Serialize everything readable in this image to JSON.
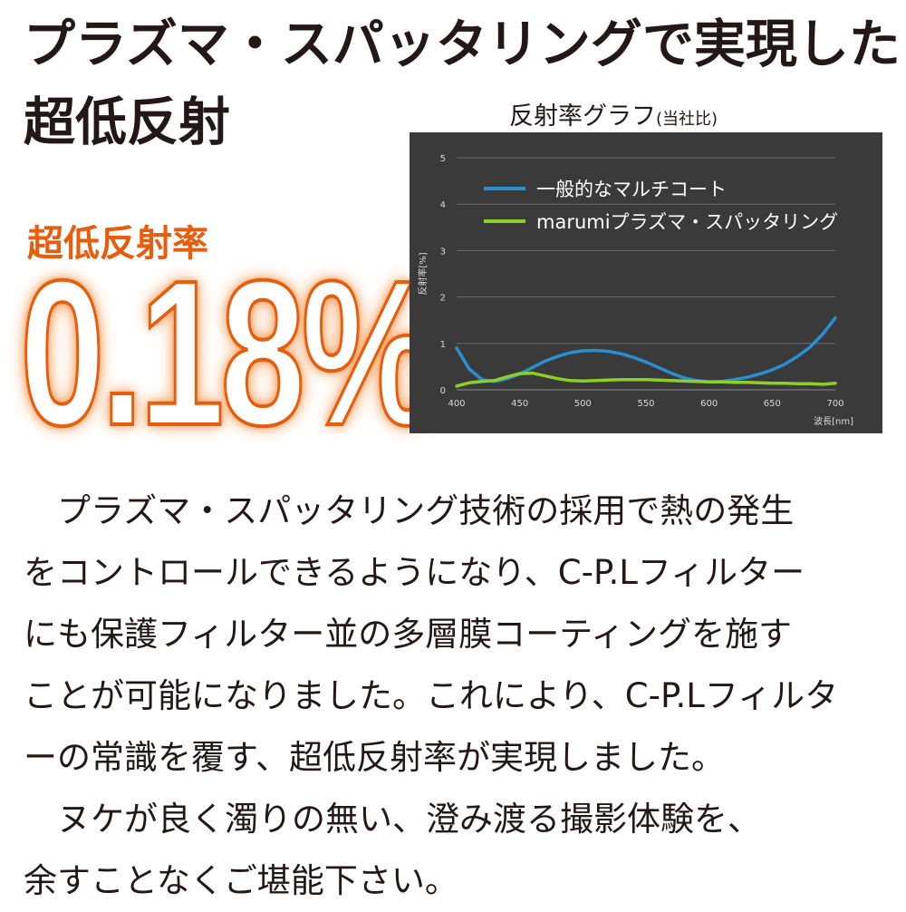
{
  "headline": {
    "line1": "プラズマ・スパッタリングで実現した",
    "line2": "超低反射"
  },
  "rate": {
    "label": "超低反射率",
    "value": "0.18%"
  },
  "chart_title": {
    "main": "反射率グラフ",
    "sub": "(当社比)"
  },
  "colors": {
    "accent": "#e85d0c",
    "chart_bg": "#3a3a3a",
    "series_blue": "#2a8fd0",
    "series_green": "#8ccf2a",
    "text": "#231815"
  },
  "chart_data": {
    "type": "line",
    "title": "反射率グラフ(当社比)",
    "xlabel": "波長[nm]",
    "ylabel": "反射率[%]",
    "xlim": [
      400,
      700
    ],
    "ylim": [
      0,
      5
    ],
    "x_ticks": [
      "400",
      "450",
      "500",
      "550",
      "600",
      "650",
      "700"
    ],
    "y_ticks": [
      "0",
      "1",
      "2",
      "3",
      "4",
      "5"
    ],
    "grid": true,
    "legend": "top-left",
    "x": [
      400,
      410,
      420,
      430,
      440,
      450,
      460,
      470,
      480,
      490,
      500,
      510,
      520,
      530,
      540,
      550,
      560,
      570,
      580,
      590,
      600,
      610,
      620,
      630,
      640,
      650,
      660,
      670,
      680,
      690,
      700
    ],
    "series": [
      {
        "name": "一般的なマルチコート",
        "color": "#2a8fd0",
        "values": [
          0.9,
          0.45,
          0.22,
          0.18,
          0.24,
          0.34,
          0.48,
          0.62,
          0.72,
          0.8,
          0.84,
          0.85,
          0.83,
          0.78,
          0.7,
          0.6,
          0.48,
          0.36,
          0.26,
          0.2,
          0.17,
          0.18,
          0.22,
          0.27,
          0.34,
          0.43,
          0.55,
          0.72,
          0.92,
          1.2,
          1.55
        ]
      },
      {
        "name": "marumiプラズマ・スパッタリング",
        "color": "#8ccf2a",
        "values": [
          0.08,
          0.15,
          0.18,
          0.2,
          0.28,
          0.35,
          0.36,
          0.3,
          0.24,
          0.2,
          0.19,
          0.2,
          0.21,
          0.22,
          0.22,
          0.22,
          0.21,
          0.2,
          0.19,
          0.18,
          0.17,
          0.17,
          0.16,
          0.16,
          0.15,
          0.14,
          0.14,
          0.13,
          0.13,
          0.12,
          0.14
        ]
      }
    ]
  },
  "body": {
    "lines": [
      "　プラズマ・スパッタリング技術の採用で熱の発生",
      "をコントロールできるようになり、C-P.Lフィルター",
      "にも保護フィルター並の多層膜コーティングを施す",
      "ことが可能になりました。これにより、C-P.Lフィルタ",
      "ーの常識を覆す、超低反射率が実現しました。",
      "　ヌケが良く濁りの無い、澄み渡る撮影体験を、",
      "余すことなくご堪能下さい。"
    ]
  }
}
